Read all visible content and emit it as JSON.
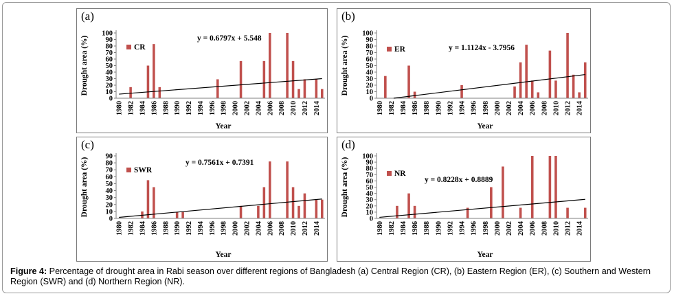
{
  "caption": {
    "label": "Figure 4:",
    "text": " Percentage of drought area in Rabi season over different regions of Bangladesh (a) Central Region (CR), (b) Eastern Region (ER), (c) Southern and Western Region (SWR) and (d) Northern Region (NR)."
  },
  "colors": {
    "bar": "#c0504d",
    "trend": "#000000",
    "axis": "#7f7f7f"
  },
  "chart_data": [
    {
      "type": "bar",
      "panel_label": "(a)",
      "legend": "CR",
      "equation": "y = 0.6797x + 5.548",
      "ylabel": "Drought area (%)",
      "xlabel": "Year",
      "ylim": [
        0,
        100
      ],
      "yticks": [
        0,
        10,
        20,
        30,
        40,
        50,
        60,
        70,
        80,
        90,
        100
      ],
      "x": [
        1980,
        1981,
        1982,
        1983,
        1984,
        1985,
        1986,
        1987,
        1988,
        1989,
        1990,
        1991,
        1992,
        1993,
        1994,
        1995,
        1996,
        1997,
        1998,
        1999,
        2000,
        2001,
        2002,
        2003,
        2004,
        2005,
        2006,
        2007,
        2008,
        2009,
        2010,
        2011,
        2012,
        2013,
        2014,
        2015
      ],
      "xtick_labels": [
        "1980",
        "1982",
        "1984",
        "1986",
        "1988",
        "1990",
        "1992",
        "1994",
        "1996",
        "1998",
        "2000",
        "2002",
        "2004",
        "2006",
        "2008",
        "2010",
        "2012",
        "2014"
      ],
      "values": [
        0,
        0,
        17,
        0,
        0,
        50,
        83,
        17,
        0,
        0,
        0,
        0,
        0,
        0,
        0,
        0,
        0,
        29,
        0,
        0,
        0,
        57,
        0,
        0,
        0,
        57,
        100,
        0,
        0,
        100,
        57,
        14,
        29,
        0,
        29,
        14
      ],
      "trend": {
        "slope": 0.6797,
        "intercept": 5.548
      }
    },
    {
      "type": "bar",
      "panel_label": "(b)",
      "legend": "ER",
      "equation": "y = 1.1124x - 3.7956",
      "ylabel": "Drought area (%)",
      "xlabel": "Year",
      "ylim": [
        0,
        100
      ],
      "yticks": [
        0,
        10,
        20,
        30,
        40,
        50,
        60,
        70,
        80,
        90,
        100
      ],
      "x": [
        1980,
        1981,
        1982,
        1983,
        1984,
        1985,
        1986,
        1987,
        1988,
        1989,
        1990,
        1991,
        1992,
        1993,
        1994,
        1995,
        1996,
        1997,
        1998,
        1999,
        2000,
        2001,
        2002,
        2003,
        2004,
        2005,
        2006,
        2007,
        2008,
        2009,
        2010,
        2011,
        2012,
        2013,
        2014,
        2015
      ],
      "xtick_labels": [
        "1980",
        "1982",
        "1984",
        "1986",
        "1988",
        "1990",
        "1992",
        "1994",
        "1996",
        "1998",
        "2000",
        "2002",
        "2004",
        "2006",
        "2008",
        "2010",
        "2012",
        "2014"
      ],
      "values": [
        0,
        34,
        0,
        0,
        0,
        50,
        10,
        0,
        0,
        0,
        0,
        0,
        0,
        0,
        20,
        0,
        0,
        0,
        0,
        0,
        0,
        0,
        0,
        18,
        55,
        82,
        27,
        9,
        0,
        73,
        27,
        0,
        100,
        36,
        9,
        55
      ],
      "trend": {
        "slope": 1.1124,
        "intercept": -3.7956
      }
    },
    {
      "type": "bar",
      "panel_label": "(c)",
      "legend": "SWR",
      "equation": "y = 0.7561x + 0.7391",
      "ylabel": "Drought area (%)",
      "xlabel": "Year",
      "ylim": [
        0,
        90
      ],
      "yticks": [
        0,
        10,
        20,
        30,
        40,
        50,
        60,
        70,
        80,
        90
      ],
      "x": [
        1980,
        1981,
        1982,
        1983,
        1984,
        1985,
        1986,
        1987,
        1988,
        1989,
        1990,
        1991,
        1992,
        1993,
        1994,
        1995,
        1996,
        1997,
        1998,
        1999,
        2000,
        2001,
        2002,
        2003,
        2004,
        2005,
        2006,
        2007,
        2008,
        2009,
        2010,
        2011,
        2012,
        2013,
        2014,
        2015
      ],
      "xtick_labels": [
        "1980",
        "1982",
        "1984",
        "1986",
        "1988",
        "1990",
        "1992",
        "1994",
        "1996",
        "1998",
        "2000",
        "2002",
        "2004",
        "2006",
        "2008",
        "2010",
        "2012",
        "2014"
      ],
      "values": [
        0,
        0,
        0,
        0,
        10,
        55,
        45,
        0,
        0,
        0,
        9,
        9,
        0,
        0,
        0,
        0,
        0,
        0,
        0,
        0,
        0,
        18,
        0,
        0,
        18,
        45,
        82,
        0,
        0,
        82,
        45,
        18,
        36,
        0,
        27,
        27
      ],
      "trend": {
        "slope": 0.7561,
        "intercept": 0.7391
      }
    },
    {
      "type": "bar",
      "panel_label": "(d)",
      "legend": "NR",
      "equation": "y = 0.8228x + 0.8889",
      "ylabel": "Drought area (%)",
      "xlabel": "Year",
      "ylim": [
        0,
        100
      ],
      "yticks": [
        0,
        10,
        20,
        30,
        40,
        50,
        60,
        70,
        80,
        90,
        100
      ],
      "x": [
        1980,
        1981,
        1982,
        1983,
        1984,
        1985,
        1986,
        1987,
        1988,
        1989,
        1990,
        1991,
        1992,
        1993,
        1994,
        1995,
        1996,
        1997,
        1998,
        1999,
        2000,
        2001,
        2002,
        2003,
        2004,
        2005,
        2006,
        2007,
        2008,
        2009,
        2010,
        2011,
        2012,
        2013,
        2014,
        2015
      ],
      "xtick_labels": [
        "1980",
        "1982",
        "1984",
        "1986",
        "1988",
        "1990",
        "1992",
        "1994",
        "1996",
        "1998",
        "2000",
        "2002",
        "2004",
        "2006",
        "2008",
        "2010",
        "2012",
        "2014"
      ],
      "values": [
        0,
        0,
        0,
        20,
        0,
        40,
        20,
        0,
        0,
        0,
        0,
        0,
        0,
        0,
        0,
        17,
        0,
        0,
        0,
        50,
        0,
        83,
        0,
        0,
        17,
        0,
        100,
        0,
        0,
        100,
        100,
        0,
        17,
        0,
        0,
        17
      ],
      "trend": {
        "slope": 0.8228,
        "intercept": 0.8889
      }
    }
  ]
}
